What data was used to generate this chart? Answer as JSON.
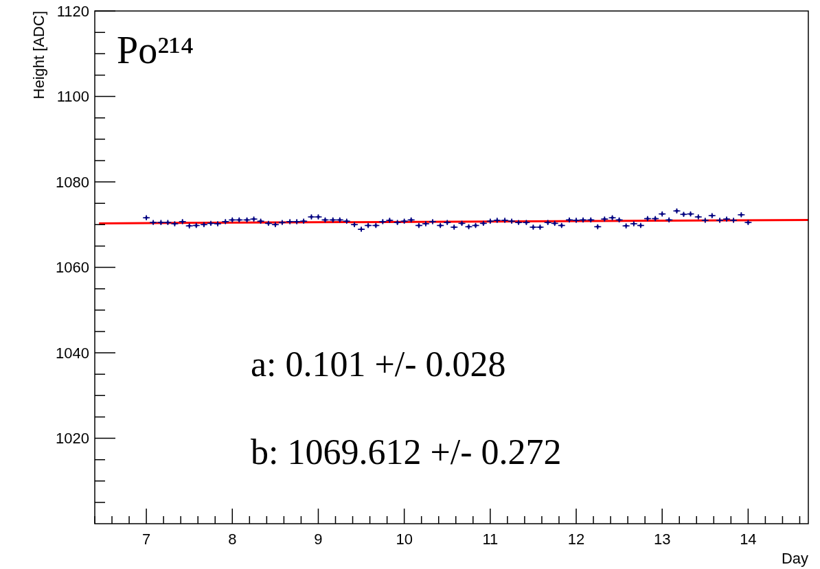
{
  "chart_data": {
    "type": "scatter",
    "xlabel": "Day",
    "ylabel": "Height [ADC]",
    "xlim": [
      6.4,
      14.7
    ],
    "ylim": [
      1000,
      1120
    ],
    "xticks": [
      {
        "value": 6.4,
        "label": null
      },
      {
        "value": 6.6,
        "label": null
      },
      {
        "value": 6.8,
        "label": null
      },
      7,
      {
        "value": 7.2,
        "label": null
      },
      {
        "value": 7.4,
        "label": null
      },
      {
        "value": 7.6,
        "label": null
      },
      {
        "value": 7.8,
        "label": null
      },
      8,
      {
        "value": 8.2,
        "label": null
      },
      {
        "value": 8.4,
        "label": null
      },
      {
        "value": 8.6,
        "label": null
      },
      {
        "value": 8.8,
        "label": null
      },
      9,
      {
        "value": 9.2,
        "label": null
      },
      {
        "value": 9.4,
        "label": null
      },
      {
        "value": 9.6,
        "label": null
      },
      {
        "value": 9.8,
        "label": null
      },
      10,
      {
        "value": 10.2,
        "label": null
      },
      {
        "value": 10.4,
        "label": null
      },
      {
        "value": 10.6,
        "label": null
      },
      {
        "value": 10.8,
        "label": null
      },
      11,
      {
        "value": 11.2,
        "label": null
      },
      {
        "value": 11.4,
        "label": null
      },
      {
        "value": 11.6,
        "label": null
      },
      {
        "value": 11.8,
        "label": null
      },
      12,
      {
        "value": 12.2,
        "label": null
      },
      {
        "value": 12.4,
        "label": null
      },
      {
        "value": 12.6,
        "label": null
      },
      {
        "value": 12.8,
        "label": null
      },
      13,
      {
        "value": 13.2,
        "label": null
      },
      {
        "value": 13.4,
        "label": null
      },
      {
        "value": 13.6,
        "label": null
      },
      {
        "value": 13.8,
        "label": null
      },
      14,
      {
        "value": 14.2,
        "label": null
      },
      {
        "value": 14.4,
        "label": null
      },
      {
        "value": 14.6,
        "label": null
      }
    ],
    "yticks": [
      {
        "value": 1005,
        "label": null
      },
      {
        "value": 1010,
        "label": null
      },
      {
        "value": 1015,
        "label": null
      },
      1020,
      {
        "value": 1025,
        "label": null
      },
      {
        "value": 1030,
        "label": null
      },
      {
        "value": 1035,
        "label": null
      },
      1040,
      {
        "value": 1045,
        "label": null
      },
      {
        "value": 1050,
        "label": null
      },
      {
        "value": 1055,
        "label": null
      },
      1060,
      {
        "value": 1065,
        "label": null
      },
      {
        "value": 1070,
        "label": null
      },
      {
        "value": 1075,
        "label": null
      },
      1080,
      {
        "value": 1085,
        "label": null
      },
      {
        "value": 1090,
        "label": null
      },
      {
        "value": 1095,
        "label": null
      },
      1100,
      {
        "value": 1105,
        "label": null
      },
      {
        "value": 1110,
        "label": null
      },
      {
        "value": 1115,
        "label": null
      },
      1120
    ],
    "grid": false,
    "annotations": [
      "Po²¹⁴",
      "a: 0.101 +/- 0.028",
      "b: 1069.612 +/- 0.272"
    ],
    "series": [
      {
        "color": "#000080",
        "marker": "cross",
        "x": [
          7.0,
          7.08,
          7.17,
          7.25,
          7.33,
          7.42,
          7.5,
          7.58,
          7.67,
          7.75,
          7.83,
          7.92,
          8.0,
          8.08,
          8.17,
          8.25,
          8.33,
          8.42,
          8.5,
          8.58,
          8.67,
          8.75,
          8.83,
          8.92,
          9.0,
          9.08,
          9.17,
          9.25,
          9.33,
          9.42,
          9.5,
          9.58,
          9.67,
          9.75,
          9.83,
          9.92,
          10.0,
          10.08,
          10.17,
          10.25,
          10.33,
          10.42,
          10.5,
          10.58,
          10.67,
          10.75,
          10.83,
          10.92,
          11.0,
          11.08,
          11.17,
          11.25,
          11.33,
          11.42,
          11.5,
          11.58,
          11.67,
          11.75,
          11.83,
          11.92,
          12.0,
          12.08,
          12.17,
          12.25,
          12.33,
          12.42,
          12.5,
          12.58,
          12.67,
          12.75,
          12.83,
          12.92,
          13.0,
          13.08,
          13.17,
          13.25,
          13.33,
          13.42,
          13.5,
          13.58,
          13.67,
          13.75,
          13.83,
          13.92,
          14.0
        ],
        "values": [
          1071.6,
          1070.5,
          1070.5,
          1070.5,
          1070.2,
          1070.7,
          1069.7,
          1069.8,
          1070.0,
          1070.3,
          1070.2,
          1070.7,
          1071.1,
          1071.1,
          1071.1,
          1071.3,
          1070.8,
          1070.3,
          1070.0,
          1070.5,
          1070.7,
          1070.7,
          1070.8,
          1071.8,
          1071.8,
          1071.1,
          1071.1,
          1071.1,
          1070.8,
          1070.0,
          1068.9,
          1069.8,
          1069.8,
          1070.7,
          1071.0,
          1070.5,
          1070.8,
          1071.1,
          1069.8,
          1070.2,
          1070.7,
          1069.8,
          1070.5,
          1069.4,
          1070.3,
          1069.5,
          1069.8,
          1070.3,
          1070.8,
          1071.0,
          1071.0,
          1070.8,
          1070.5,
          1070.5,
          1069.4,
          1069.4,
          1070.5,
          1070.3,
          1069.8,
          1071.1,
          1071.0,
          1071.1,
          1071.1,
          1069.5,
          1071.3,
          1071.6,
          1071.1,
          1069.7,
          1070.2,
          1069.8,
          1071.4,
          1071.4,
          1072.5,
          1071.1,
          1073.2,
          1072.4,
          1072.5,
          1071.8,
          1071.0,
          1072.1,
          1071.0,
          1071.3,
          1071.0,
          1072.3,
          1070.5
        ],
        "errors": [
          0.6,
          0.6,
          0.6,
          0.6,
          0.6,
          0.6,
          0.6,
          0.6,
          0.6,
          0.6,
          0.6,
          0.6,
          0.6,
          0.6,
          0.6,
          0.6,
          0.6,
          0.6,
          0.6,
          0.6,
          0.6,
          0.6,
          0.6,
          0.6,
          0.6,
          0.6,
          0.6,
          0.6,
          0.6,
          0.6,
          0.6,
          0.6,
          0.6,
          0.6,
          0.6,
          0.6,
          0.6,
          0.6,
          0.6,
          0.6,
          0.6,
          0.6,
          0.6,
          0.6,
          0.6,
          0.6,
          0.6,
          0.6,
          0.6,
          0.6,
          0.6,
          0.6,
          0.6,
          0.6,
          0.6,
          0.6,
          0.6,
          0.6,
          0.6,
          0.6,
          0.6,
          0.6,
          0.6,
          0.6,
          0.6,
          0.6,
          0.6,
          0.6,
          0.6,
          0.6,
          0.6,
          0.6,
          0.6,
          0.6,
          0.6,
          0.6,
          0.6,
          0.6,
          0.6,
          0.6,
          0.6,
          0.6,
          0.6,
          0.6,
          0.6
        ],
        "xerrors": [
          0.04,
          0.04,
          0.04,
          0.04,
          0.04,
          0.04,
          0.04,
          0.04,
          0.04,
          0.04,
          0.04,
          0.04,
          0.04,
          0.04,
          0.04,
          0.04,
          0.04,
          0.04,
          0.04,
          0.04,
          0.04,
          0.04,
          0.04,
          0.04,
          0.04,
          0.04,
          0.04,
          0.04,
          0.04,
          0.04,
          0.04,
          0.04,
          0.04,
          0.04,
          0.04,
          0.04,
          0.04,
          0.04,
          0.04,
          0.04,
          0.04,
          0.04,
          0.04,
          0.04,
          0.04,
          0.04,
          0.04,
          0.04,
          0.04,
          0.04,
          0.04,
          0.04,
          0.04,
          0.04,
          0.04,
          0.04,
          0.04,
          0.04,
          0.04,
          0.04,
          0.04,
          0.04,
          0.04,
          0.04,
          0.04,
          0.04,
          0.04,
          0.04,
          0.04,
          0.04,
          0.04,
          0.04,
          0.04,
          0.04,
          0.04,
          0.04,
          0.04,
          0.04,
          0.04,
          0.04,
          0.04,
          0.04,
          0.04,
          0.04,
          0.04
        ]
      },
      {
        "type": "line",
        "color": "#ff0000",
        "x": [
          6.45,
          14.7
        ],
        "values": [
          1070.3,
          1071.1
        ]
      }
    ]
  }
}
